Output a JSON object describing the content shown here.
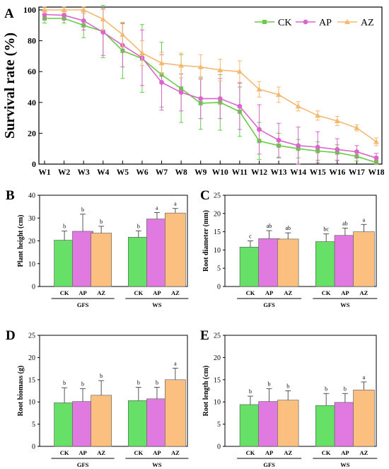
{
  "chart_data": [
    {
      "panel": "A",
      "type": "line",
      "title": "",
      "xlabel": "",
      "ylabel": "Survival rate (%)",
      "ylim": [
        0,
        100
      ],
      "yticks": [
        0,
        20,
        40,
        60,
        80,
        100
      ],
      "categories": [
        "W1",
        "W2",
        "W3",
        "W4",
        "W5",
        "W6",
        "W7",
        "W8",
        "W9",
        "W10",
        "W11",
        "W12",
        "W13",
        "W14",
        "W15",
        "W16",
        "W17",
        "W18"
      ],
      "legend": "top-right",
      "grid": false,
      "series": [
        {
          "name": "CK",
          "color": "#66cc44",
          "marker": "square",
          "values": [
            94.5,
            94.5,
            90,
            86,
            73.5,
            68.5,
            58,
            49,
            39.5,
            40,
            34,
            15,
            12,
            10,
            8.5,
            7.5,
            5,
            1
          ],
          "errors": [
            3,
            3,
            8,
            17,
            18,
            22,
            21,
            22,
            17,
            18,
            16,
            12,
            8,
            6,
            6,
            5,
            3,
            1.5
          ]
        },
        {
          "name": "AP",
          "color": "#d966cc",
          "marker": "circle",
          "values": [
            97,
            96.5,
            93,
            85.5,
            77,
            69,
            53,
            46.5,
            42.5,
            42.5,
            37.5,
            22.5,
            15.5,
            12,
            11,
            9.5,
            8,
            4
          ],
          "errors": [
            3,
            3,
            6,
            15,
            14,
            18,
            18,
            12,
            13,
            13,
            15,
            16,
            11,
            12,
            10,
            7,
            4,
            3
          ]
        },
        {
          "name": "AZ",
          "color": "#f5b870",
          "marker": "triangle",
          "values": [
            100,
            100,
            100,
            94,
            84,
            72,
            65.5,
            64,
            63,
            61,
            60,
            48.5,
            45,
            37.5,
            31.5,
            28,
            23.5,
            14.5
          ],
          "errors": [
            2,
            2,
            2,
            7,
            8,
            8,
            7,
            8,
            8,
            7,
            7,
            5,
            5,
            3,
            3,
            3,
            2,
            2.5
          ]
        }
      ]
    },
    {
      "panel": "B",
      "type": "bar",
      "ylabel": "Plant height (cm)",
      "ylim": [
        0,
        40
      ],
      "yticks": [
        0,
        10,
        20,
        30,
        40
      ],
      "groups": [
        "GFS",
        "WS"
      ],
      "categories": [
        "CK",
        "AP",
        "AZ"
      ],
      "series": [
        {
          "group": "GFS",
          "values": [
            20.3,
            24.2,
            23.4
          ],
          "errors": [
            4.0,
            7.5,
            3.0
          ],
          "letters": [
            "b",
            "b",
            "b"
          ]
        },
        {
          "group": "WS",
          "values": [
            21.6,
            29.6,
            32.2
          ],
          "errors": [
            2.8,
            2.8,
            2.0
          ],
          "letters": [
            "b",
            "a",
            "a"
          ]
        }
      ]
    },
    {
      "panel": "C",
      "type": "bar",
      "ylabel": "Root diameter (mm)",
      "ylim": [
        0,
        25
      ],
      "yticks": [
        0,
        5,
        10,
        15,
        20,
        25
      ],
      "groups": [
        "GFS",
        "WS"
      ],
      "categories": [
        "CK",
        "AP",
        "AZ"
      ],
      "series": [
        {
          "group": "GFS",
          "values": [
            10.8,
            13.1,
            13.0
          ],
          "errors": [
            1.7,
            2.2,
            1.7
          ],
          "letters": [
            "c",
            "ab",
            "ab"
          ]
        },
        {
          "group": "WS",
          "values": [
            12.3,
            14.0,
            15.0
          ],
          "errors": [
            2.1,
            2.0,
            2.0
          ],
          "letters": [
            "bc",
            "ab",
            "a"
          ]
        }
      ]
    },
    {
      "panel": "D",
      "type": "bar",
      "ylabel": "Root biomass (g)",
      "ylim": [
        0,
        25
      ],
      "yticks": [
        0,
        5,
        10,
        15,
        20,
        25
      ],
      "groups": [
        "GFS",
        "WS"
      ],
      "categories": [
        "CK",
        "AP",
        "AZ"
      ],
      "series": [
        {
          "group": "GFS",
          "values": [
            9.8,
            10.1,
            11.5
          ],
          "errors": [
            3.4,
            2.9,
            3.3
          ],
          "letters": [
            "b",
            "b",
            "b"
          ]
        },
        {
          "group": "WS",
          "values": [
            10.3,
            10.7,
            15.0
          ],
          "errors": [
            3.0,
            2.6,
            2.6
          ],
          "letters": [
            "b",
            "b",
            "a"
          ]
        }
      ]
    },
    {
      "panel": "E",
      "type": "bar",
      "ylabel": "Root length (cm)",
      "ylim": [
        0,
        25
      ],
      "yticks": [
        0,
        5,
        10,
        15,
        20,
        25
      ],
      "groups": [
        "GFS",
        "WS"
      ],
      "categories": [
        "CK",
        "AP",
        "AZ"
      ],
      "series": [
        {
          "group": "GFS",
          "values": [
            9.4,
            10.1,
            10.4
          ],
          "errors": [
            1.9,
            2.9,
            2.1
          ],
          "letters": [
            "b",
            "b",
            "b"
          ]
        },
        {
          "group": "WS",
          "values": [
            9.2,
            9.9,
            12.7
          ],
          "errors": [
            2.7,
            2.0,
            1.8
          ],
          "letters": [
            "b",
            "b",
            "a"
          ]
        }
      ]
    }
  ],
  "bar_colors": [
    "#66e066",
    "#e07ae0",
    "#fbbf80"
  ]
}
